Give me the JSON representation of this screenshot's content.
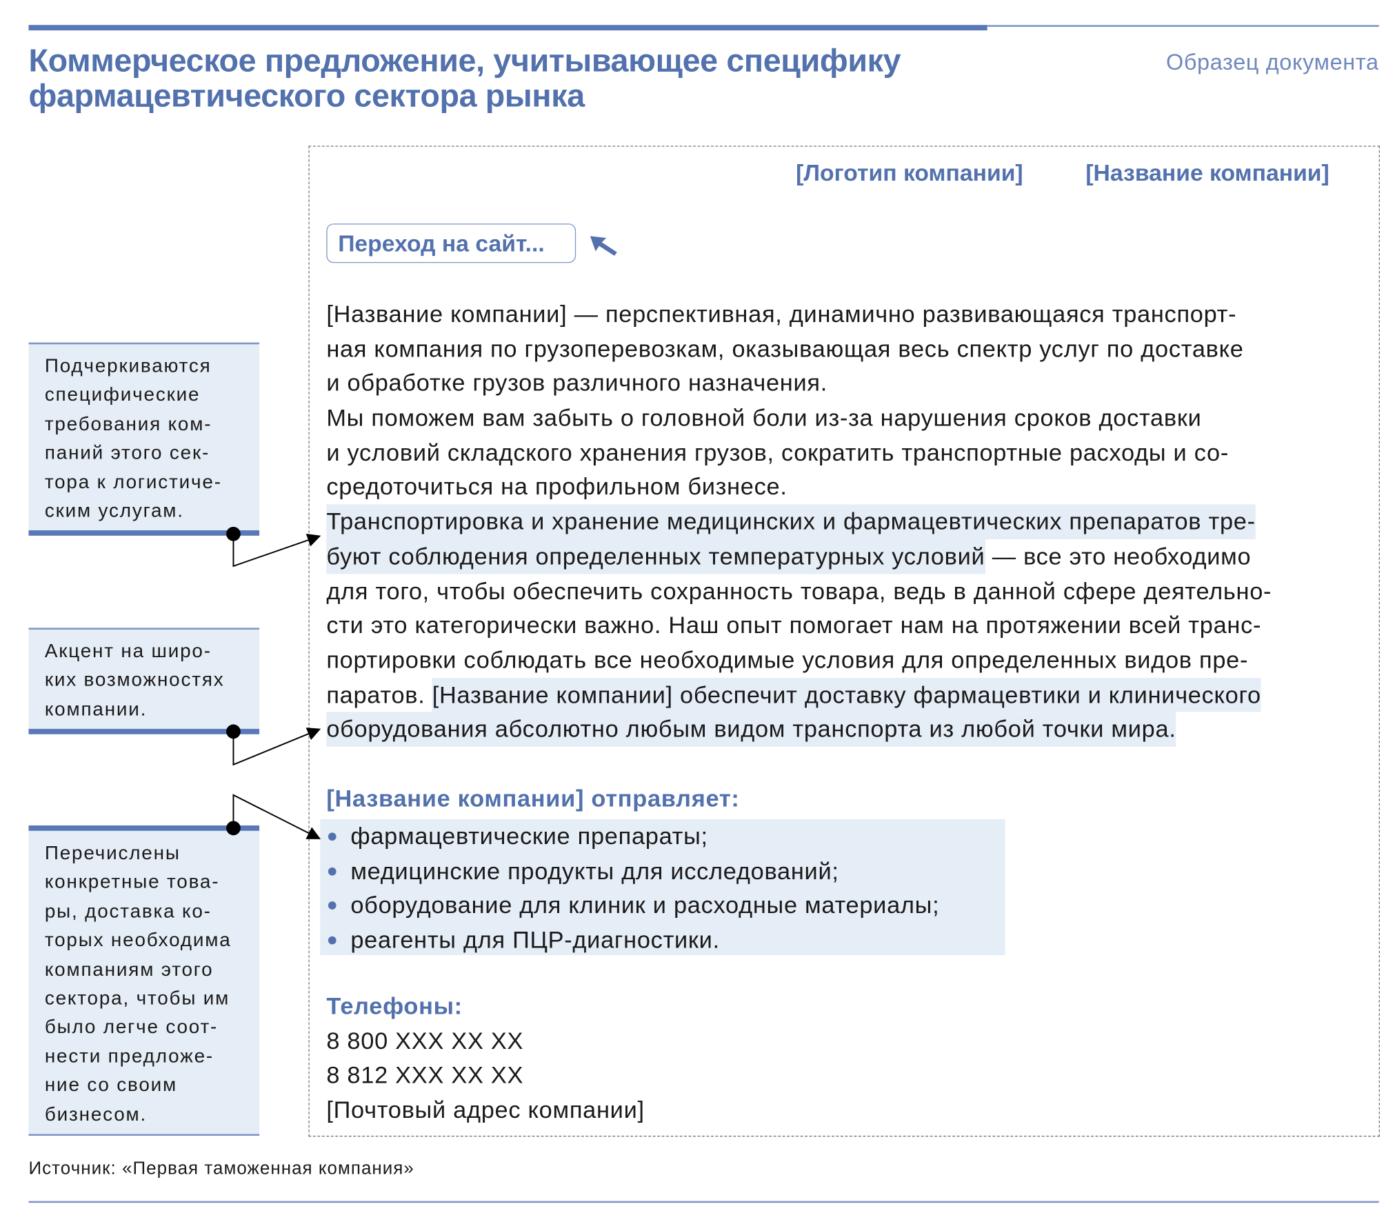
{
  "header": {
    "title_line1": "Коммерческое предложение, учитывающее специфику",
    "title_line2": "фармацевтического сектора рынка",
    "label": "Образец документа"
  },
  "document": {
    "logo_placeholder": "[Логотип компании]",
    "name_placeholder": "[Название компании]",
    "site_button": "Переход на сайт...",
    "cursor_icon": "arrow-cursor-icon",
    "lines": [
      [
        "[Название компании] — перспективная, динамично развивающаяся транспорт-"
      ],
      [
        "ная компания по грузоперевозкам, оказывающая весь спектр услуг по доставке"
      ],
      [
        "и обработке грузов различного назначения."
      ],
      [
        "Мы поможем вам забыть о головной боли из-за нарушения сроков доставки"
      ],
      [
        "и условий складского хранения грузов, сократить транспортные расходы и со-"
      ],
      [
        "средоточиться на профильном бизнесе."
      ],
      [
        "Транспортировка и хранение медицинских и фармацевтических препаратов тре-"
      ],
      [
        "буют соблюдения определенных температурных условий",
        " — все это необходимо"
      ],
      [
        "для того, чтобы обеспечить сохранность товара, ведь в данной сфере деятельно-"
      ],
      [
        "сти это категорически важно. Наш опыт помогает нам на протяжении всей транс-"
      ],
      [
        "портировки соблюдать все необходимые условия для определенных видов пре-"
      ],
      [
        "паратов. ",
        "[Название компании] обеспечит доставку фармацевтики и клинического"
      ],
      [
        "оборудования абсолютно любым видом транспорта из любой точки мира."
      ]
    ],
    "ships_heading": "[Название компании] отправляет:",
    "ships_items": [
      "фармацевтические препараты;",
      "медицинские продукты для исследований;",
      "оборудование для клиник и расходные материалы;",
      "реагенты для ПЦР-диагностики."
    ],
    "phones_heading": "Телефоны:",
    "phones": [
      "8 800 XXX XX XX",
      "8 812 XXX XX XX"
    ],
    "address": "[Почтовый адрес компании]"
  },
  "annotations": [
    {
      "lines": [
        "Подчеркиваются",
        "специфические",
        "требования ком-",
        "паний этого сек-",
        "тора к логистиче-",
        "ским услугам."
      ]
    },
    {
      "lines": [
        "Акцент на широ-",
        "ких возможностях",
        "компании."
      ]
    },
    {
      "lines": [
        "Перечислены",
        "конкретные това-",
        "ры, доставка ко-",
        "торых необходима",
        "компаниям этого",
        "сектора, чтобы им",
        "было легче соот-",
        "нести предложе-",
        "ние со своим",
        "бизнесом."
      ]
    }
  ],
  "source": "Источник: «Первая таможенная компания»",
  "colors": {
    "accent": "#5271ad",
    "highlight": "#e5edf6",
    "bar": "#5878b8"
  }
}
